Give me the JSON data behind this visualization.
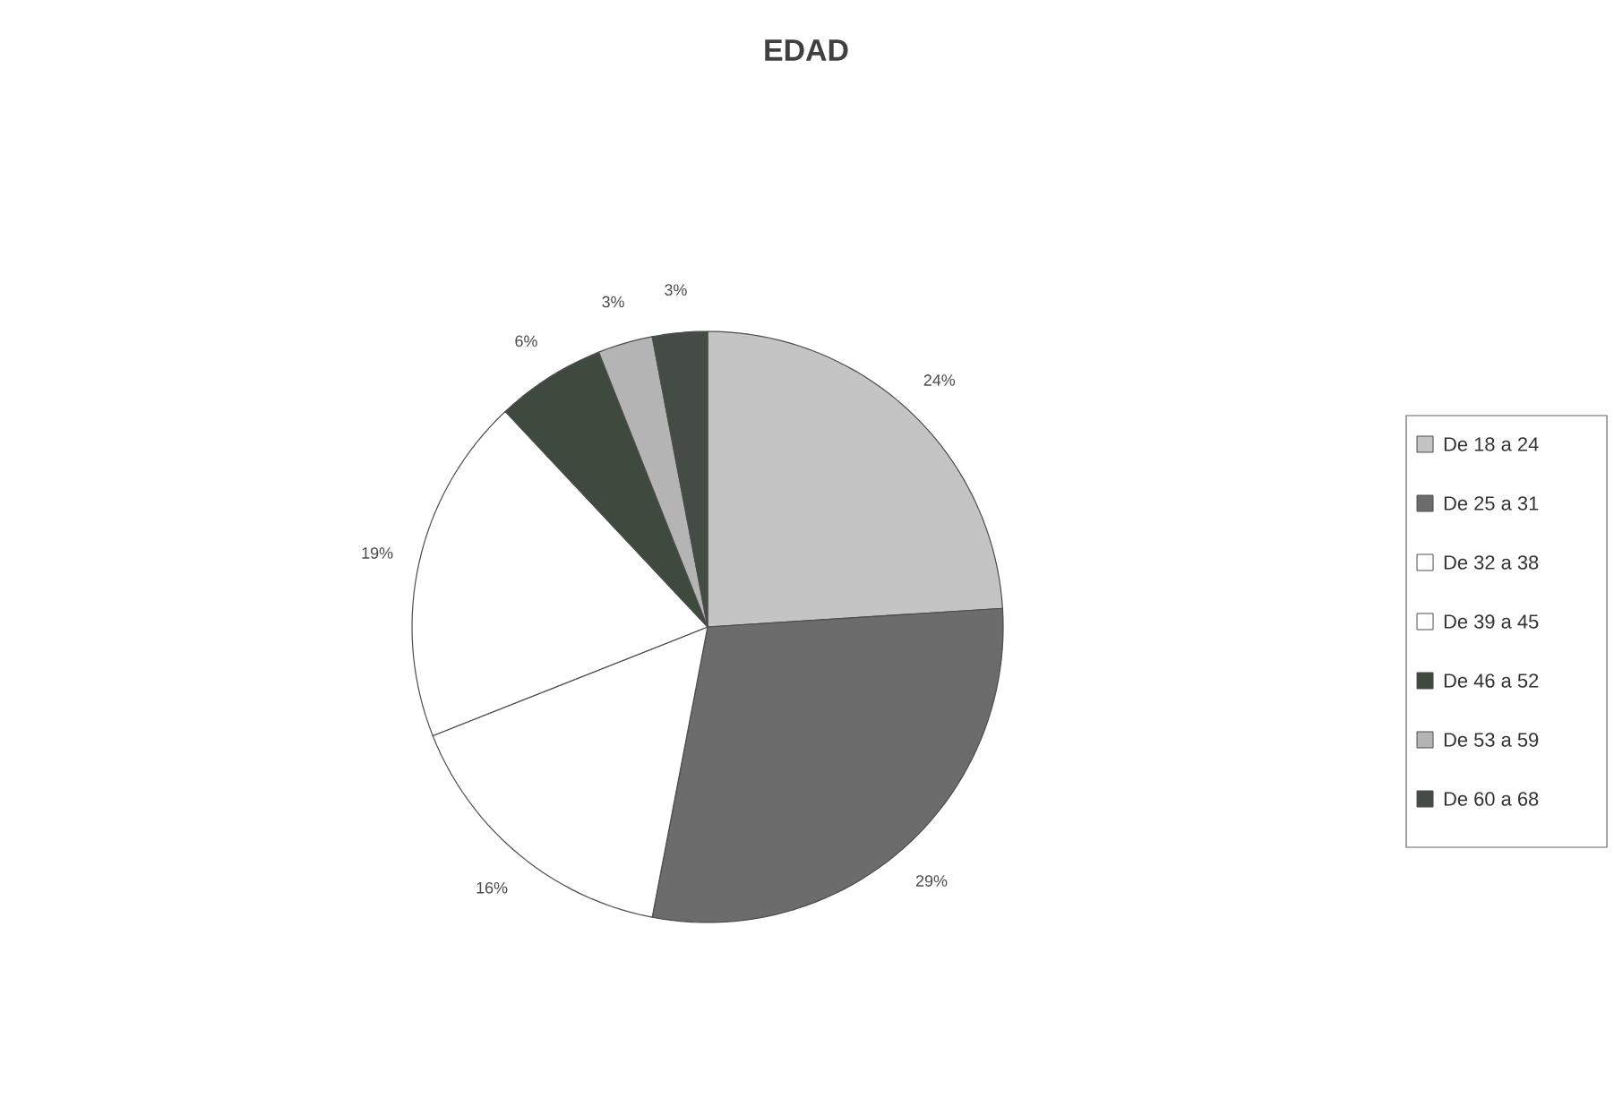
{
  "chart_data": {
    "type": "pie",
    "title": "EDAD",
    "categories": [
      "De 18 a 24",
      "De 25 a 31",
      "De 32 a 38",
      "De 39 a 45",
      "De 46 a 52",
      "De 53 a 59",
      "De 60 a 68"
    ],
    "values": [
      24,
      29,
      16,
      19,
      6,
      3,
      3
    ],
    "value_labels": [
      "24%",
      "29%",
      "16%",
      "19%",
      "6%",
      "3%",
      "3%"
    ],
    "colors": [
      "#c4c4c4",
      "#6c6c6c",
      "#ffffff",
      "#ffffff",
      "#3f4a3f",
      "#b4b4b4",
      "#454c45"
    ],
    "legend": "right"
  }
}
